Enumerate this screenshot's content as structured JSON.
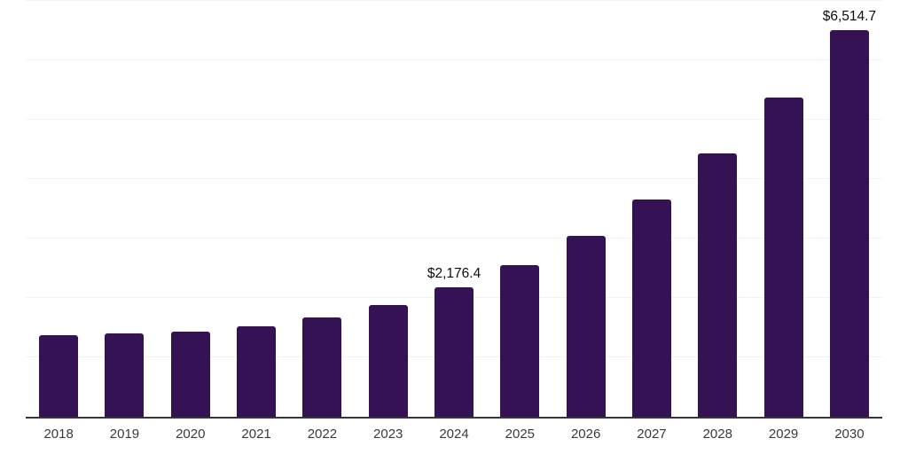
{
  "chart_data": {
    "type": "bar",
    "categories": [
      "2018",
      "2019",
      "2020",
      "2021",
      "2022",
      "2023",
      "2024",
      "2025",
      "2026",
      "2027",
      "2028",
      "2029",
      "2030"
    ],
    "values": [
      1370,
      1400,
      1430,
      1525,
      1665,
      1880,
      2176.4,
      2550,
      3045,
      3655,
      4430,
      5375,
      6514.7
    ],
    "labeled_points": [
      {
        "category": "2024",
        "label": "$2,176.4"
      },
      {
        "category": "2030",
        "label": "$6,514.7"
      }
    ],
    "title": "",
    "xlabel": "",
    "ylabel": "",
    "ylim": [
      0,
      7000
    ],
    "gridline_step": 1000,
    "grid": "horizontal-only",
    "y_tick_labels_visible": false,
    "legend": "none",
    "colors": {
      "bar": "#341253",
      "axis_line": "#37343e",
      "gridline": "#f2f2f2",
      "value_label": "#0d0d0d",
      "tick_label": "#3a3a3a",
      "background": "#ffffff"
    }
  }
}
